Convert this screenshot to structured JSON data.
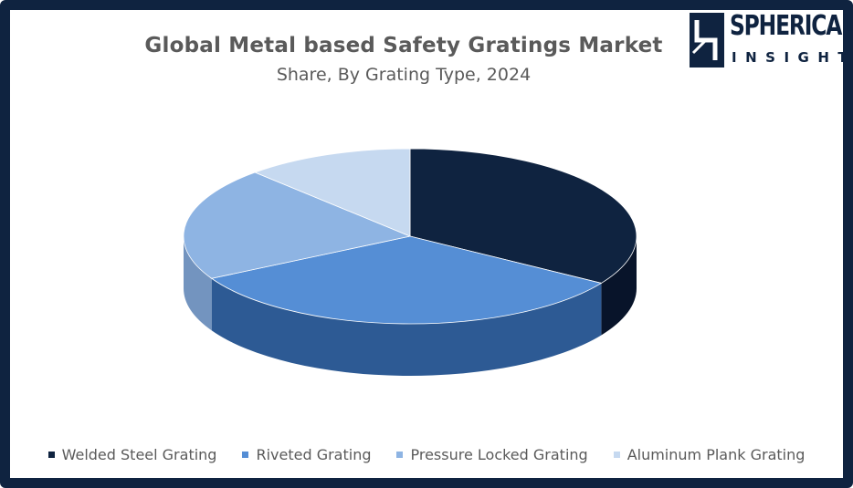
{
  "logo": {
    "word": "SPHERICAL",
    "sub": "INSIGHTS"
  },
  "colors": {
    "frame": "#0f2340",
    "slices": [
      "#0f2340",
      "#558ed5",
      "#8eb4e3",
      "#c6d9f0"
    ],
    "sides": [
      "#08142a",
      "#2d5a94",
      "#7394bf",
      "#a9bfd8"
    ]
  },
  "chart_data": {
    "type": "pie",
    "title": "Global Metal based Safety Gratings Market",
    "subtitle": "Share, By Grating Type, 2024",
    "legend_position": "bottom",
    "categories": [
      "Welded Steel Grating",
      "Riveted Grating",
      "Pressure Locked Grating",
      "Aluminum Plank Grating"
    ],
    "values": [
      34,
      33,
      21,
      12
    ]
  }
}
